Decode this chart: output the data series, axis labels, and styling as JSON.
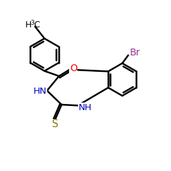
{
  "background": "#ffffff",
  "bond_color": "#000000",
  "bond_width": 1.8,
  "N_color": "#0000bb",
  "O_color": "#ff0000",
  "S_color": "#808000",
  "Br_color": "#993399",
  "C_color": "#000000",
  "xlim": [
    0,
    10
  ],
  "ylim": [
    0,
    10
  ]
}
